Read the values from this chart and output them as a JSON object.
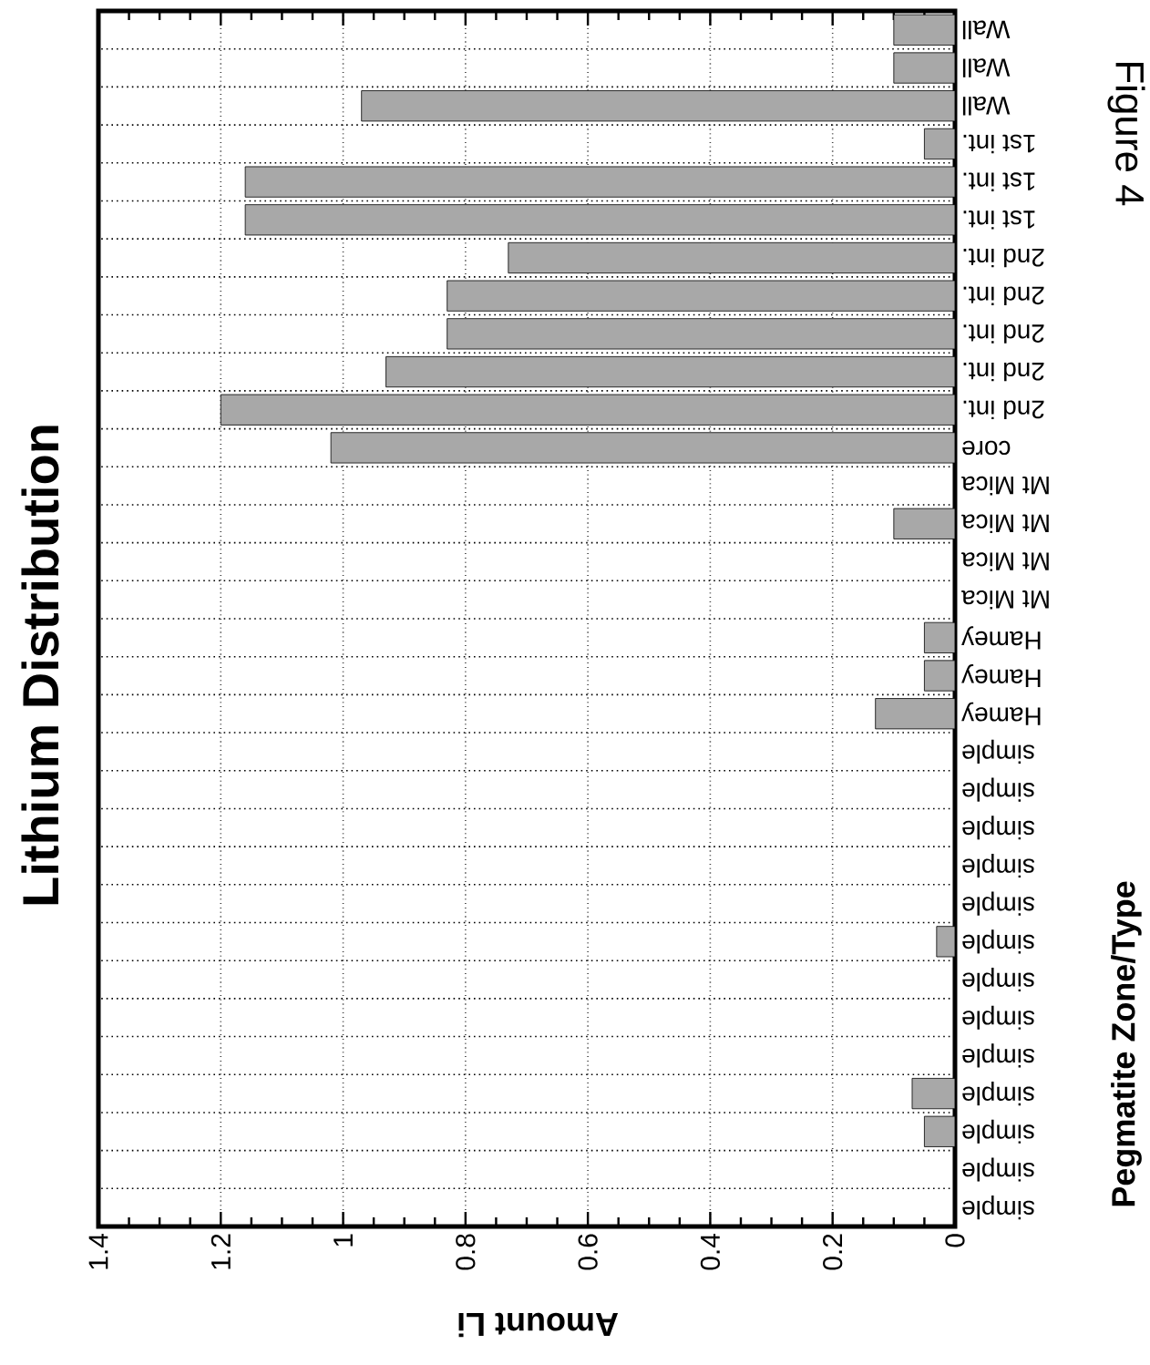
{
  "chart_data": {
    "type": "bar",
    "orientation": "horizontal",
    "title": "Lithium Distribution",
    "xlabel": "Amount Li",
    "ylabel": "Pegmatite Zone/Type",
    "categories": [
      "Wall",
      "Wall",
      "Wall",
      "1st int.",
      "1st int.",
      "1st int.",
      "2nd int.",
      "2nd int.",
      "2nd int.",
      "2nd int.",
      "2nd int.",
      "core",
      "Mt Mica",
      "Mt Mica",
      "Mt Mica",
      "Mt Mica",
      "Hamey",
      "Hamey",
      "Hamey",
      "simple",
      "simple",
      "simple",
      "simple",
      "simple",
      "simple",
      "simple",
      "simple",
      "simple",
      "simple",
      "simple",
      "simple",
      "simple"
    ],
    "values": [
      0.1,
      0.1,
      0.97,
      0.05,
      1.16,
      1.16,
      0.73,
      0.83,
      0.83,
      0.93,
      1.2,
      1.02,
      0,
      0.1,
      0,
      0,
      0.05,
      0.05,
      0.13,
      0,
      0,
      0,
      0,
      0,
      0.03,
      0,
      0,
      0,
      0.07,
      0.05,
      0,
      0
    ],
    "color": "#a8a8a8",
    "xlim": [
      1.4,
      0
    ],
    "xticks": [
      1.4,
      1.2,
      1,
      0.8,
      0.6,
      0.4,
      0.2,
      0
    ],
    "grid": true,
    "annotations": [
      "Figure 4"
    ]
  }
}
